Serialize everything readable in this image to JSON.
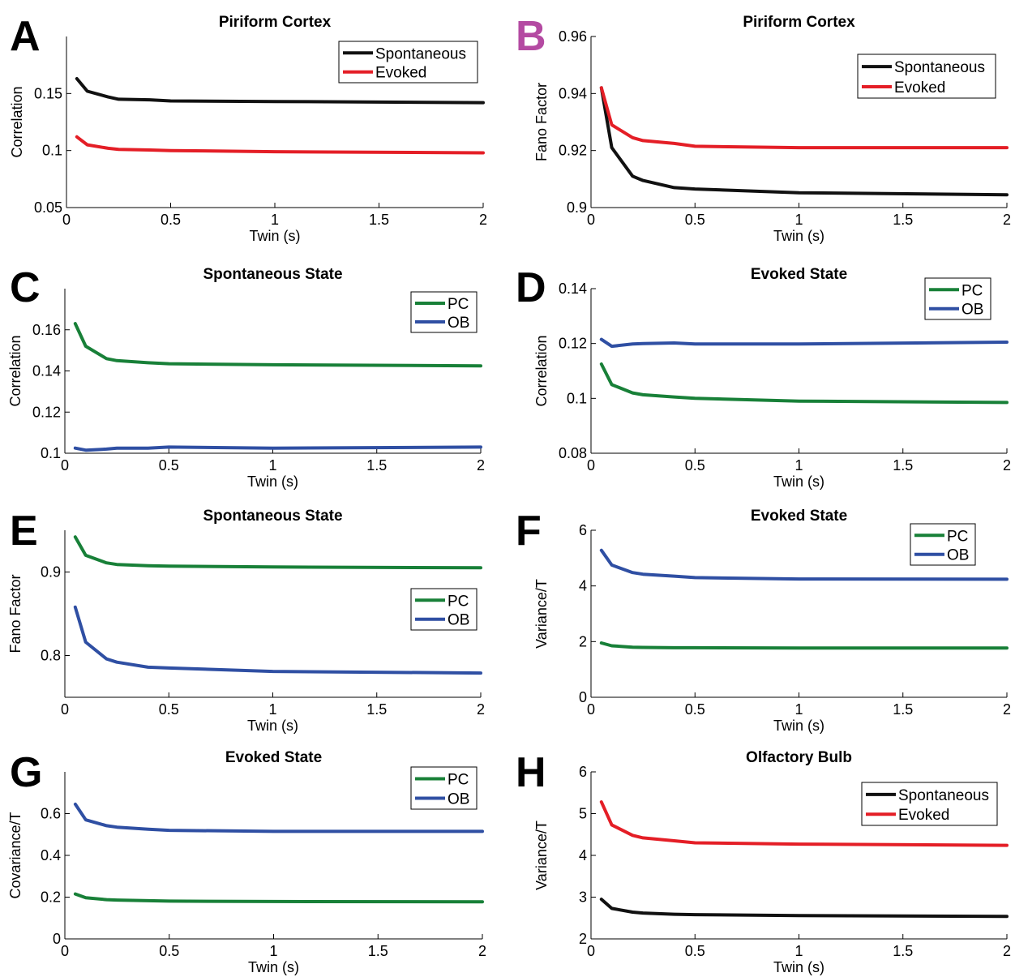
{
  "colors": {
    "black": "#111111",
    "red": "#e41e26",
    "green": "#188038",
    "blue": "#2f4fa3",
    "magenta": "#b44aa2",
    "text": "#000000"
  },
  "chart_data": [
    {
      "panel_label": "A",
      "panel_label_color": "#000000",
      "type": "line",
      "title": "Piriform Cortex",
      "xlabel": "Twin (s)",
      "ylabel": "Correlation",
      "xlim": [
        0,
        2
      ],
      "ylim": [
        0.05,
        0.2
      ],
      "xticks": [
        0,
        0.5,
        1,
        1.5,
        2
      ],
      "xtick_labels": [
        "0",
        "0.5",
        "1",
        "1.5",
        "2"
      ],
      "yticks": [
        0.05,
        0.1,
        0.15
      ],
      "ytick_labels": [
        "0.05",
        "0.1",
        "0.15"
      ],
      "legend": "top-right",
      "x": [
        0.05,
        0.1,
        0.2,
        0.25,
        0.4,
        0.5,
        1,
        2
      ],
      "series": [
        {
          "name": "Spontaneous",
          "color": "#111111",
          "values": [
            0.163,
            0.152,
            0.147,
            0.145,
            0.1445,
            0.1435,
            0.143,
            0.142
          ]
        },
        {
          "name": "Evoked",
          "color": "#e41e26",
          "values": [
            0.112,
            0.105,
            0.102,
            0.101,
            0.1005,
            0.1,
            0.099,
            0.098
          ]
        }
      ]
    },
    {
      "panel_label": "B",
      "panel_label_color": "#b44aa2",
      "type": "line",
      "title": "Piriform Cortex",
      "xlabel": "Twin (s)",
      "ylabel": "Fano Factor",
      "xlim": [
        0,
        2
      ],
      "ylim": [
        0.9,
        0.96
      ],
      "xticks": [
        0,
        0.5,
        1,
        1.5,
        2
      ],
      "xtick_labels": [
        "0",
        "0.5",
        "1",
        "1.5",
        "2"
      ],
      "yticks": [
        0.9,
        0.92,
        0.94,
        0.96
      ],
      "ytick_labels": [
        "0.9",
        "0.92",
        "0.94",
        "0.96"
      ],
      "legend": "top-right",
      "x": [
        0.05,
        0.1,
        0.2,
        0.25,
        0.4,
        0.5,
        1,
        2
      ],
      "series": [
        {
          "name": "Spontaneous",
          "color": "#111111",
          "values": [
            0.942,
            0.921,
            0.911,
            0.9095,
            0.907,
            0.9065,
            0.9052,
            0.9045
          ]
        },
        {
          "name": "Evoked",
          "color": "#e41e26",
          "values": [
            0.942,
            0.929,
            0.9245,
            0.9235,
            0.9225,
            0.9215,
            0.921,
            0.921
          ]
        }
      ]
    },
    {
      "panel_label": "C",
      "panel_label_color": "#000000",
      "type": "line",
      "title": "Spontaneous State",
      "xlabel": "Twin (s)",
      "ylabel": "Correlation",
      "xlim": [
        0,
        2
      ],
      "ylim": [
        0.1,
        0.18
      ],
      "xticks": [
        0,
        0.5,
        1,
        1.5,
        2
      ],
      "xtick_labels": [
        "0",
        "0.5",
        "1",
        "1.5",
        "2"
      ],
      "yticks": [
        0.1,
        0.12,
        0.14,
        0.16
      ],
      "ytick_labels": [
        "0.1",
        "0.12",
        "0.14",
        "0.16"
      ],
      "legend": "top-right",
      "x": [
        0.05,
        0.1,
        0.2,
        0.25,
        0.4,
        0.5,
        1,
        2
      ],
      "series": [
        {
          "name": "PC",
          "color": "#188038",
          "values": [
            0.163,
            0.152,
            0.146,
            0.145,
            0.144,
            0.1435,
            0.143,
            0.1425
          ]
        },
        {
          "name": "OB",
          "color": "#2f4fa3",
          "values": [
            0.1025,
            0.1015,
            0.102,
            0.1025,
            0.1025,
            0.103,
            0.1025,
            0.103
          ]
        }
      ]
    },
    {
      "panel_label": "D",
      "panel_label_color": "#000000",
      "type": "line",
      "title": "Evoked State",
      "xlabel": "Twin (s)",
      "ylabel": "Correlation",
      "xlim": [
        0,
        2
      ],
      "ylim": [
        0.08,
        0.14
      ],
      "xticks": [
        0,
        0.5,
        1,
        1.5,
        2
      ],
      "xtick_labels": [
        "0",
        "0.5",
        "1",
        "1.5",
        "2"
      ],
      "yticks": [
        0.08,
        0.1,
        0.12,
        0.14
      ],
      "ytick_labels": [
        "0.08",
        "0.1",
        "0.12",
        "0.14"
      ],
      "legend": "top-right",
      "x": [
        0.05,
        0.1,
        0.2,
        0.25,
        0.4,
        0.5,
        1,
        2
      ],
      "series": [
        {
          "name": "PC",
          "color": "#188038",
          "values": [
            0.1125,
            0.105,
            0.102,
            0.1013,
            0.1005,
            0.1,
            0.099,
            0.0985
          ]
        },
        {
          "name": "OB",
          "color": "#2f4fa3",
          "values": [
            0.1215,
            0.119,
            0.1198,
            0.12,
            0.1202,
            0.1198,
            0.1198,
            0.1205
          ]
        }
      ]
    },
    {
      "panel_label": "E",
      "panel_label_color": "#000000",
      "type": "line",
      "title": "Spontaneous State",
      "xlabel": "Twin (s)",
      "ylabel": "Fano Factor",
      "xlim": [
        0,
        2
      ],
      "ylim": [
        0.75,
        0.95
      ],
      "xticks": [
        0,
        0.5,
        1,
        1.5,
        2
      ],
      "xtick_labels": [
        "0",
        "0.5",
        "1",
        "1.5",
        "2"
      ],
      "yticks": [
        0.8,
        0.9
      ],
      "ytick_labels": [
        "0.8",
        "0.9"
      ],
      "legend": "center-right",
      "x": [
        0.05,
        0.1,
        0.2,
        0.25,
        0.4,
        0.5,
        1,
        2
      ],
      "series": [
        {
          "name": "PC",
          "color": "#188038",
          "values": [
            0.942,
            0.92,
            0.911,
            0.909,
            0.9075,
            0.907,
            0.906,
            0.905
          ]
        },
        {
          "name": "OB",
          "color": "#2f4fa3",
          "values": [
            0.858,
            0.816,
            0.796,
            0.792,
            0.786,
            0.785,
            0.781,
            0.779
          ]
        }
      ]
    },
    {
      "panel_label": "F",
      "panel_label_color": "#000000",
      "type": "line",
      "title": "Evoked State",
      "xlabel": "Twin (s)",
      "ylabel": "Variance/T",
      "xlim": [
        0,
        2
      ],
      "ylim": [
        0,
        6
      ],
      "xticks": [
        0,
        0.5,
        1,
        1.5,
        2
      ],
      "xtick_labels": [
        "0",
        "0.5",
        "1",
        "1.5",
        "2"
      ],
      "yticks": [
        0,
        2,
        4,
        6
      ],
      "ytick_labels": [
        "0",
        "2",
        "4",
        "6"
      ],
      "legend": "top-right",
      "x": [
        0.05,
        0.1,
        0.2,
        0.25,
        0.4,
        0.5,
        1,
        2
      ],
      "series": [
        {
          "name": "PC",
          "color": "#188038",
          "values": [
            1.95,
            1.85,
            1.8,
            1.79,
            1.78,
            1.78,
            1.77,
            1.77
          ]
        },
        {
          "name": "OB",
          "color": "#2f4fa3",
          "values": [
            5.28,
            4.75,
            4.48,
            4.42,
            4.35,
            4.3,
            4.25,
            4.24
          ]
        }
      ]
    },
    {
      "panel_label": "G",
      "panel_label_color": "#000000",
      "type": "line",
      "title": "Evoked State",
      "xlabel": "Twin (s)",
      "ylabel": "Covariance/T",
      "xlim": [
        0,
        2
      ],
      "ylim": [
        0,
        0.8
      ],
      "xticks": [
        0,
        0.5,
        1,
        1.5,
        2
      ],
      "xtick_labels": [
        "0",
        "0.5",
        "1",
        "1.5",
        "2"
      ],
      "yticks": [
        0,
        0.2,
        0.4,
        0.6
      ],
      "ytick_labels": [
        "0",
        "0.2",
        "0.4",
        "0.6"
      ],
      "legend": "top-right",
      "x": [
        0.05,
        0.1,
        0.2,
        0.25,
        0.4,
        0.5,
        1,
        2
      ],
      "series": [
        {
          "name": "PC",
          "color": "#188038",
          "values": [
            0.215,
            0.197,
            0.188,
            0.186,
            0.183,
            0.181,
            0.179,
            0.178
          ]
        },
        {
          "name": "OB",
          "color": "#2f4fa3",
          "values": [
            0.645,
            0.57,
            0.542,
            0.535,
            0.525,
            0.52,
            0.515,
            0.515
          ]
        }
      ]
    },
    {
      "panel_label": "H",
      "panel_label_color": "#000000",
      "type": "line",
      "title": "Olfactory Bulb",
      "xlabel": "Twin (s)",
      "ylabel": "Variance/T",
      "xlim": [
        0,
        2
      ],
      "ylim": [
        2,
        6
      ],
      "xticks": [
        0,
        0.5,
        1,
        1.5,
        2
      ],
      "xtick_labels": [
        "0",
        "0.5",
        "1",
        "1.5",
        "2"
      ],
      "yticks": [
        2,
        3,
        4,
        5,
        6
      ],
      "ytick_labels": [
        "2",
        "3",
        "4",
        "5",
        "6"
      ],
      "legend": "top-right",
      "x": [
        0.05,
        0.1,
        0.2,
        0.25,
        0.4,
        0.5,
        1,
        2
      ],
      "series": [
        {
          "name": "Spontaneous",
          "color": "#111111",
          "values": [
            2.95,
            2.73,
            2.64,
            2.62,
            2.59,
            2.58,
            2.56,
            2.54
          ]
        },
        {
          "name": "Evoked",
          "color": "#e41e26",
          "values": [
            5.28,
            4.73,
            4.48,
            4.42,
            4.35,
            4.3,
            4.27,
            4.24
          ]
        }
      ]
    }
  ]
}
